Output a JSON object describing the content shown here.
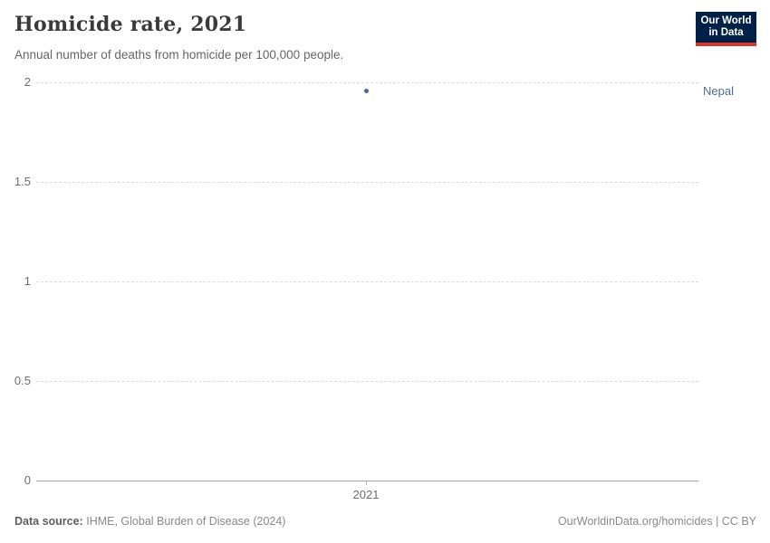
{
  "header": {
    "title": "Homicide rate, 2021",
    "subtitle": "Annual number of deaths from homicide per 100,000 people.",
    "logo": {
      "line1": "Our World",
      "line2": "in Data",
      "bg_color": "#002147",
      "accent_color": "#d7382d"
    }
  },
  "chart_data": {
    "type": "scatter",
    "title": "Homicide rate, 2021",
    "x": [
      2021
    ],
    "series": [
      {
        "name": "Nepal",
        "values": [
          1.96
        ],
        "color": "#4c6a9c"
      }
    ],
    "xlabel": "",
    "ylabel": "",
    "ylim": [
      0,
      2
    ],
    "yticks": [
      "0",
      "0.5",
      "1",
      "1.5",
      "2"
    ],
    "xticks": [
      "2021"
    ],
    "grid": "horizontal dashed",
    "legend_position": "right-of-point",
    "point_label": "Nepal"
  },
  "footer": {
    "source_label": "Data source:",
    "source_text": "IHME, Global Burden of Disease (2024)",
    "credit": "OurWorldinData.org/homicides | CC BY"
  }
}
